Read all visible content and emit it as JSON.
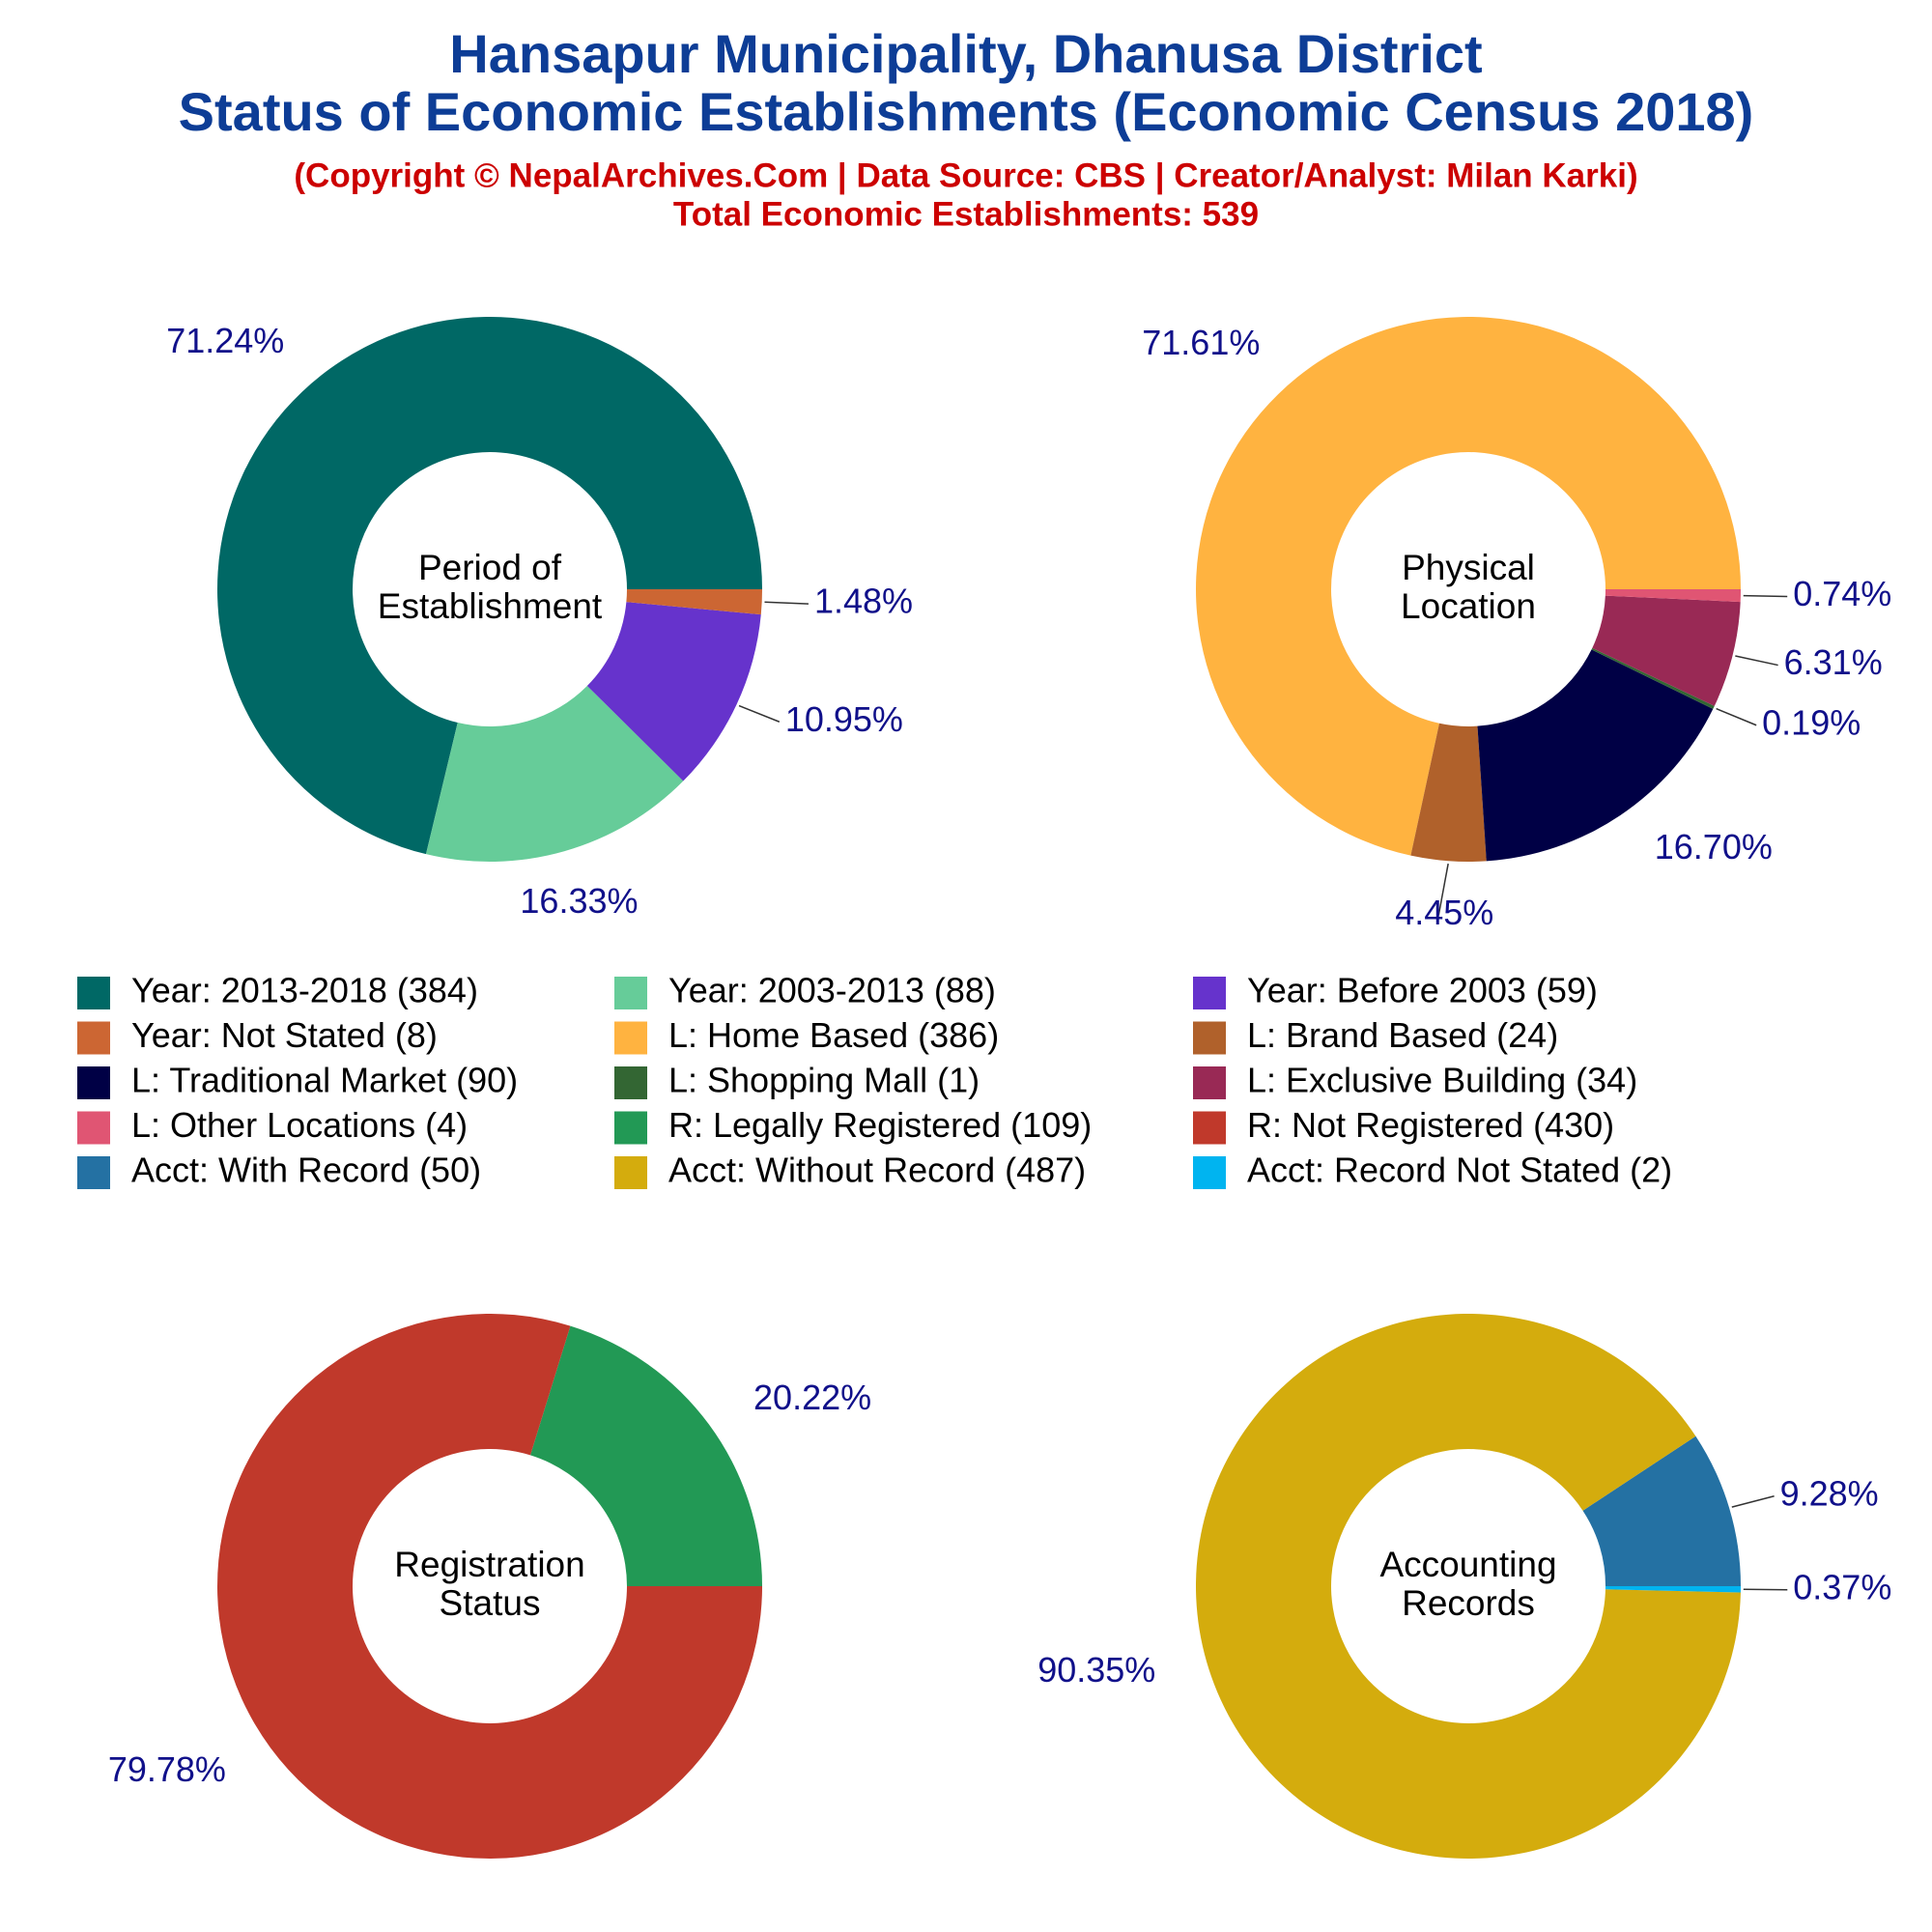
{
  "title": [
    "Hansapur Municipality, Dhanusa District",
    "Status of Economic Establishments (Economic Census 2018)"
  ],
  "subtitle": [
    "(Copyright © NepalArchives.Com | Data Source: CBS | Creator/Analyst: Milan Karki)",
    "Total Economic Establishments: 539"
  ],
  "chart_data": [
    {
      "type": "pie",
      "center_label": [
        "Period of",
        "Establishment"
      ],
      "categories": [
        "Year: 2013-2018 (384)",
        "Year: 2003-2013 (88)",
        "Year: Before 2003 (59)",
        "Year: Not Stated (8)"
      ],
      "values": [
        71.24,
        16.33,
        10.95,
        1.48
      ],
      "value_labels": [
        "71.24%",
        "16.33%",
        "10.95%",
        "1.48%"
      ],
      "colors": [
        "#006865",
        "#66cc99",
        "#6633cc",
        "#cc6633"
      ]
    },
    {
      "type": "pie",
      "center_label": [
        "Physical",
        "Location"
      ],
      "categories": [
        "L: Home Based (386)",
        "L: Brand Based (24)",
        "L: Traditional Market (90)",
        "L: Shopping Mall (1)",
        "L: Exclusive Building (34)",
        "L: Other Locations (4)"
      ],
      "values": [
        71.61,
        4.45,
        16.7,
        0.19,
        6.31,
        0.74
      ],
      "value_labels": [
        "71.61%",
        "4.45%",
        "16.70%",
        "0.19%",
        "6.31%",
        "0.74%"
      ],
      "colors": [
        "#ffb340",
        "#b0612b",
        "#000045",
        "#336633",
        "#992955",
        "#e05573"
      ]
    },
    {
      "type": "pie",
      "center_label": [
        "Registration",
        "Status"
      ],
      "categories": [
        "R: Legally Registered (109)",
        "R: Not Registered (430)"
      ],
      "values": [
        20.22,
        79.78
      ],
      "value_labels": [
        "20.22%",
        "79.78%"
      ],
      "colors": [
        "#229955",
        "#c0392b"
      ]
    },
    {
      "type": "pie",
      "center_label": [
        "Accounting",
        "Records"
      ],
      "categories": [
        "Acct: With Record (50)",
        "Acct: Without Record (487)",
        "Acct: Record Not Stated (2)"
      ],
      "values": [
        9.28,
        90.35,
        0.37
      ],
      "value_labels": [
        "9.28%",
        "90.35%",
        "0.37%"
      ],
      "colors": [
        "#2471a3",
        "#d4ac0d",
        "#00b4f0"
      ]
    }
  ]
}
